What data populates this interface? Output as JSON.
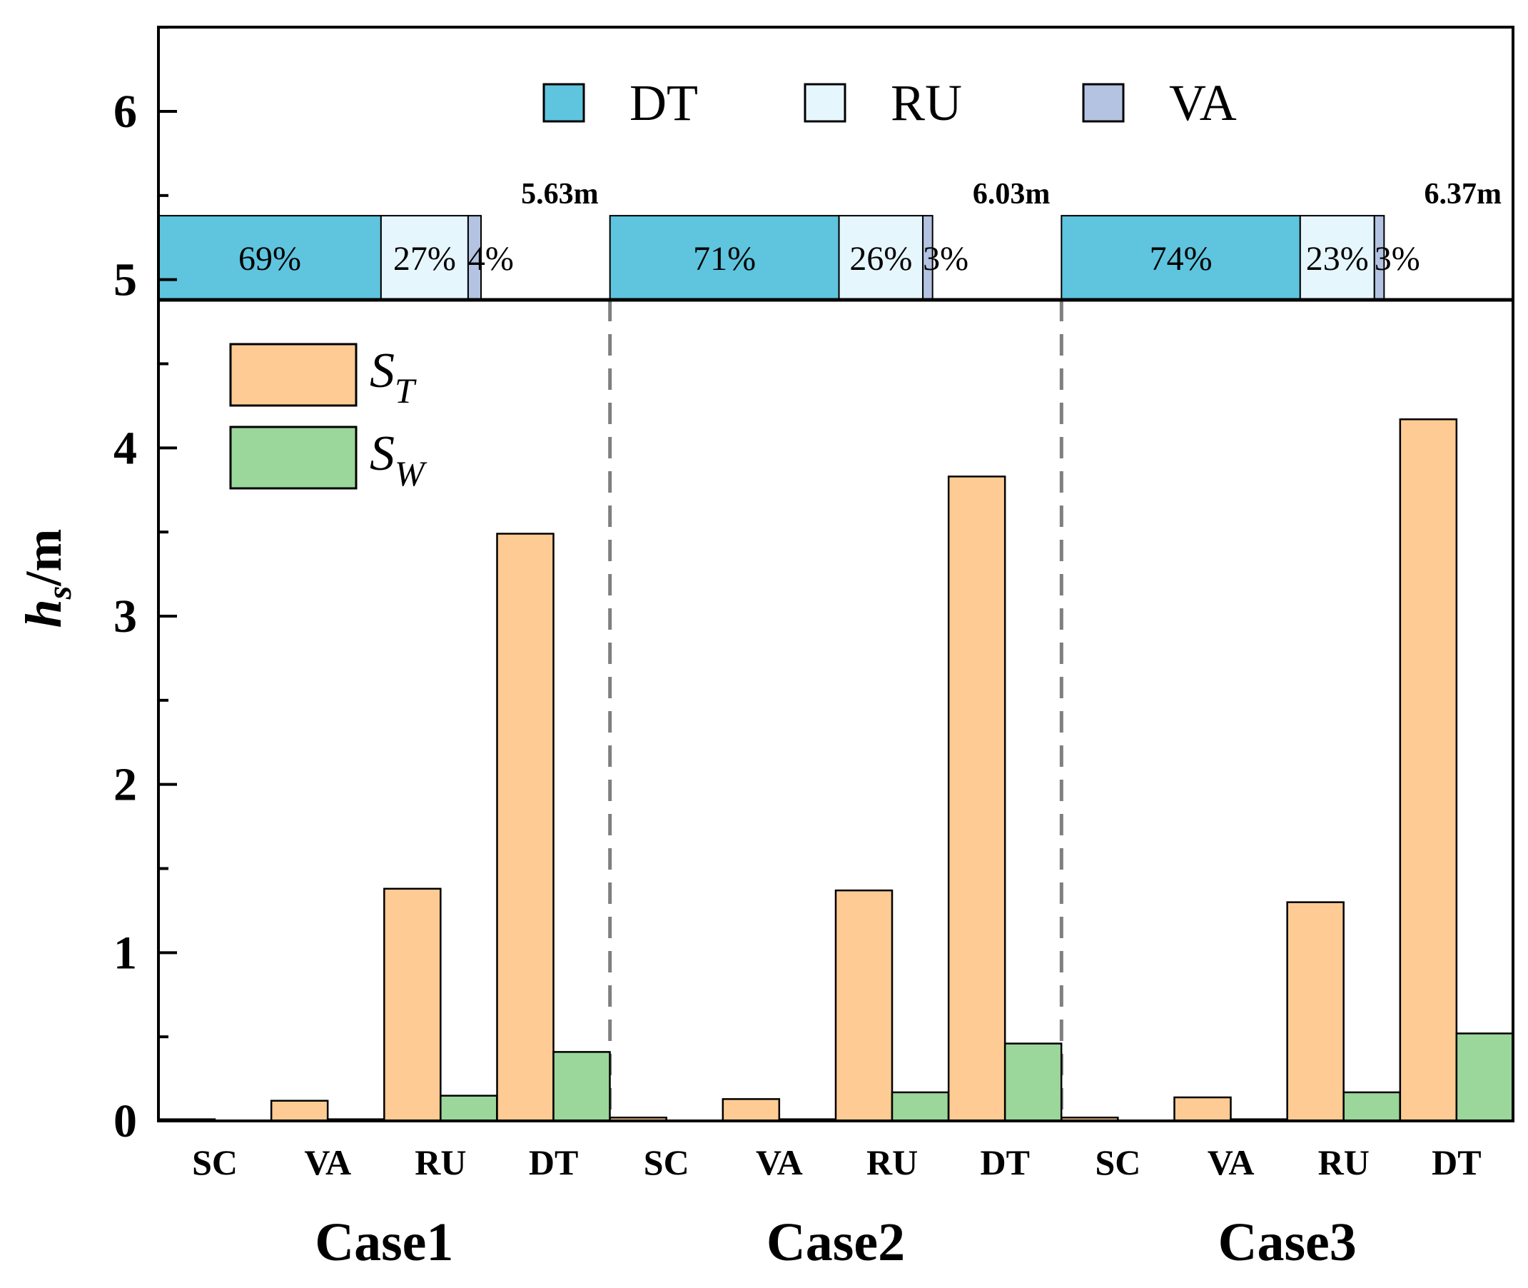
{
  "chart_data": {
    "type": "bar",
    "ylabel": "h_s/m",
    "ylabel_main": "h",
    "ylabel_sub": "s",
    "ylabel_unit": "/m",
    "ylim": [
      0,
      6.5
    ],
    "yticks": [
      0,
      1,
      2,
      3,
      4,
      5,
      6
    ],
    "cases": [
      {
        "name": "Case1",
        "categories": [
          "SC",
          "VA",
          "RU",
          "DT"
        ],
        "S_T": [
          0.01,
          0.12,
          1.38,
          3.49
        ],
        "S_W": [
          0.0,
          0.01,
          0.15,
          0.41
        ],
        "total_label": "5.63m",
        "shares": [
          {
            "part": "DT",
            "label": "69%",
            "value": 69
          },
          {
            "part": "RU",
            "label": "27%",
            "value": 27
          },
          {
            "part": "VA",
            "label": "4%",
            "value": 4
          }
        ]
      },
      {
        "name": "Case2",
        "categories": [
          "SC",
          "VA",
          "RU",
          "DT"
        ],
        "S_T": [
          0.02,
          0.13,
          1.37,
          3.83
        ],
        "S_W": [
          0.0,
          0.01,
          0.17,
          0.46
        ],
        "total_label": "6.03m",
        "shares": [
          {
            "part": "DT",
            "label": "71%",
            "value": 71
          },
          {
            "part": "RU",
            "label": "26%",
            "value": 26
          },
          {
            "part": "VA",
            "label": "3%",
            "value": 3
          }
        ]
      },
      {
        "name": "Case3",
        "categories": [
          "SC",
          "VA",
          "RU",
          "DT"
        ],
        "S_T": [
          0.02,
          0.14,
          1.3,
          4.17
        ],
        "S_W": [
          0.0,
          0.01,
          0.17,
          0.52
        ],
        "total_label": "6.37m",
        "shares": [
          {
            "part": "DT",
            "label": "74%",
            "value": 74
          },
          {
            "part": "RU",
            "label": "23%",
            "value": 23
          },
          {
            "part": "VA",
            "label": "3%",
            "value": 3
          }
        ]
      }
    ],
    "series_legend": [
      {
        "key": "S_T",
        "main": "S",
        "sub": "T",
        "color": "#FDCB93"
      },
      {
        "key": "S_W",
        "main": "S",
        "sub": "W",
        "color": "#9BD69A"
      }
    ],
    "share_legend": [
      {
        "key": "DT",
        "label": "DT",
        "color": "#5FC4DE"
      },
      {
        "key": "RU",
        "label": "RU",
        "color": "#E6F6FD"
      },
      {
        "key": "VA",
        "label": "VA",
        "color": "#B3C3E1"
      }
    ],
    "share_bar_range": [
      4.88,
      5.38
    ]
  }
}
